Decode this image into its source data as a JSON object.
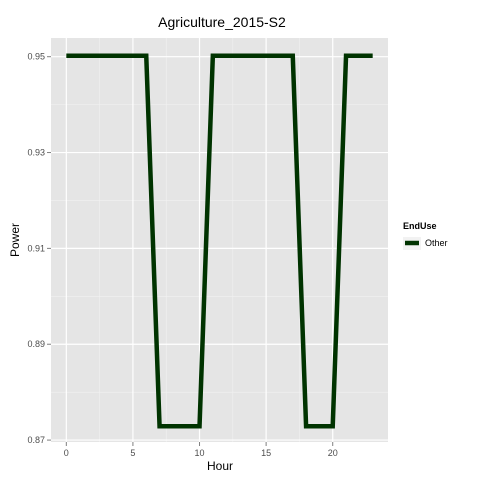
{
  "chart_data": {
    "type": "line",
    "title": "Agriculture_2015-S2",
    "xlabel": "Hour",
    "ylabel": "Power",
    "xlim": [
      -1.15,
      24.15
    ],
    "ylim": [
      0.8696,
      0.9539
    ],
    "x_ticks": [
      0,
      5,
      10,
      15,
      20
    ],
    "x_tick_labels": [
      "0",
      "5",
      "10",
      "15",
      "20"
    ],
    "y_ticks": [
      0.87,
      0.89,
      0.91,
      0.93,
      0.95
    ],
    "y_tick_labels": [
      "0.87",
      "0.89",
      "0.91",
      "0.93",
      "0.95"
    ],
    "grid": true,
    "legend_title": "EndUse",
    "legend_position": "right",
    "series": [
      {
        "name": "Other",
        "color": "#003300",
        "x": [
          0,
          1,
          2,
          3,
          4,
          5,
          6,
          7,
          8,
          9,
          10,
          11,
          12,
          13,
          14,
          15,
          16,
          17,
          18,
          19,
          20,
          21,
          22,
          23
        ],
        "values": [
          0.9502,
          0.9502,
          0.9502,
          0.9502,
          0.9502,
          0.9502,
          0.9502,
          0.8729,
          0.8729,
          0.8729,
          0.8729,
          0.9502,
          0.9502,
          0.9502,
          0.9502,
          0.9502,
          0.9502,
          0.9502,
          0.8729,
          0.8729,
          0.8729,
          0.9502,
          0.9502,
          0.9502
        ]
      }
    ]
  }
}
